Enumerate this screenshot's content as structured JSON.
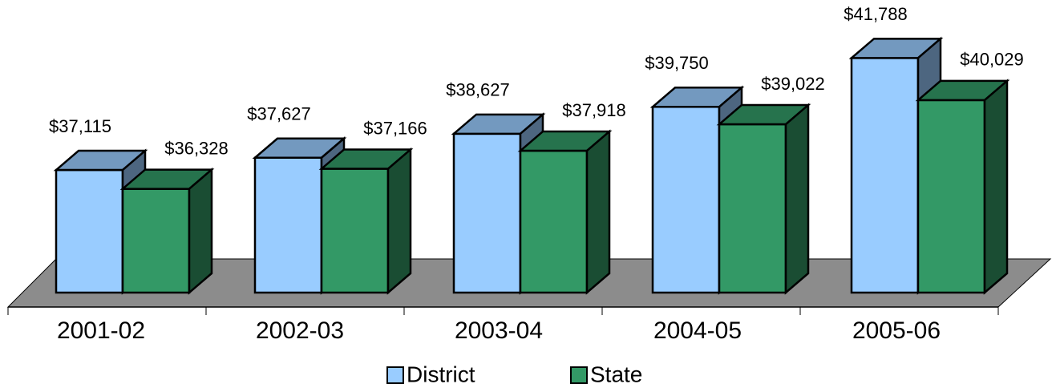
{
  "chart_data": {
    "type": "bar",
    "categories": [
      "2001-02",
      "2002-03",
      "2003-04",
      "2004-05",
      "2005-06"
    ],
    "series": [
      {
        "name": "District",
        "color": "#99ccff",
        "values": [
          37115,
          37627,
          38627,
          39750,
          41788
        ],
        "value_labels": [
          "$37,115",
          "$37,627",
          "$38,627",
          "$39,750",
          "$41,788"
        ]
      },
      {
        "name": "State",
        "color": "#339966",
        "values": [
          36328,
          37166,
          37918,
          39022,
          40029
        ],
        "value_labels": [
          "$36,328",
          "$37,166",
          "$37,918",
          "$39,022",
          "$40,029"
        ]
      }
    ],
    "ylim": [
      32000,
      42000
    ],
    "legend": "bottom"
  }
}
